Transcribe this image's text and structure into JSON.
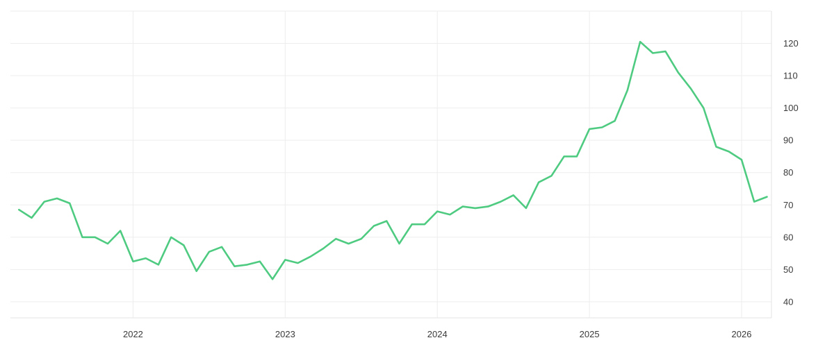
{
  "page": {
    "background_color": "#ffffff"
  },
  "chart_data": {
    "type": "line",
    "title": "",
    "xlabel": "",
    "ylabel": "",
    "legend": "none",
    "grid": "on",
    "line_color": "#4ecb81",
    "grid_color": "#ededed",
    "border_color": "#e3e3e3",
    "tick_label_color": "#3a3a3a",
    "x_tick_labels": [
      "2022",
      "2023",
      "2024",
      "2025",
      "2026"
    ],
    "y_tick_labels": [
      "40",
      "50",
      "60",
      "70",
      "80",
      "90",
      "100",
      "110",
      "120"
    ],
    "y_ticks": [
      40,
      50,
      60,
      70,
      80,
      90,
      100,
      110,
      120
    ],
    "ylim": [
      35,
      130.5
    ],
    "x_start": "2021-04",
    "x_end": "2026-03",
    "series": [
      {
        "name": "value",
        "x": [
          "2021-04",
          "2021-05",
          "2021-06",
          "2021-07",
          "2021-08",
          "2021-09",
          "2021-10",
          "2021-11",
          "2021-12",
          "2022-01",
          "2022-02",
          "2022-03",
          "2022-04",
          "2022-05",
          "2022-06",
          "2022-07",
          "2022-08",
          "2022-09",
          "2022-10",
          "2022-11",
          "2022-12",
          "2023-01",
          "2023-02",
          "2023-03",
          "2023-04",
          "2023-05",
          "2023-06",
          "2023-07",
          "2023-08",
          "2023-09",
          "2023-10",
          "2023-11",
          "2023-12",
          "2024-01",
          "2024-02",
          "2024-03",
          "2024-04",
          "2024-05",
          "2024-06",
          "2024-07",
          "2024-08",
          "2024-09",
          "2024-10",
          "2024-11",
          "2024-12",
          "2025-01",
          "2025-02",
          "2025-03",
          "2025-04",
          "2025-05",
          "2025-06",
          "2025-07",
          "2025-08",
          "2025-09",
          "2025-10",
          "2025-11",
          "2025-12",
          "2026-01",
          "2026-02",
          "2026-03"
        ],
        "values": [
          68.5,
          66,
          71,
          72,
          70.5,
          60,
          60,
          58,
          62,
          52.5,
          53.5,
          51.5,
          60,
          57.5,
          49.5,
          55.5,
          57,
          51,
          51.5,
          52.5,
          47,
          53,
          52,
          54,
          56.5,
          59.5,
          58,
          59.5,
          63.5,
          65,
          58,
          64,
          64,
          68,
          67,
          69.5,
          69,
          69.5,
          71,
          73,
          69,
          77,
          79,
          85,
          85,
          93.5,
          94,
          96,
          105.5,
          120.5,
          117,
          117.5,
          111,
          106,
          100,
          88,
          86.5,
          84,
          71,
          72.5
        ]
      }
    ]
  }
}
